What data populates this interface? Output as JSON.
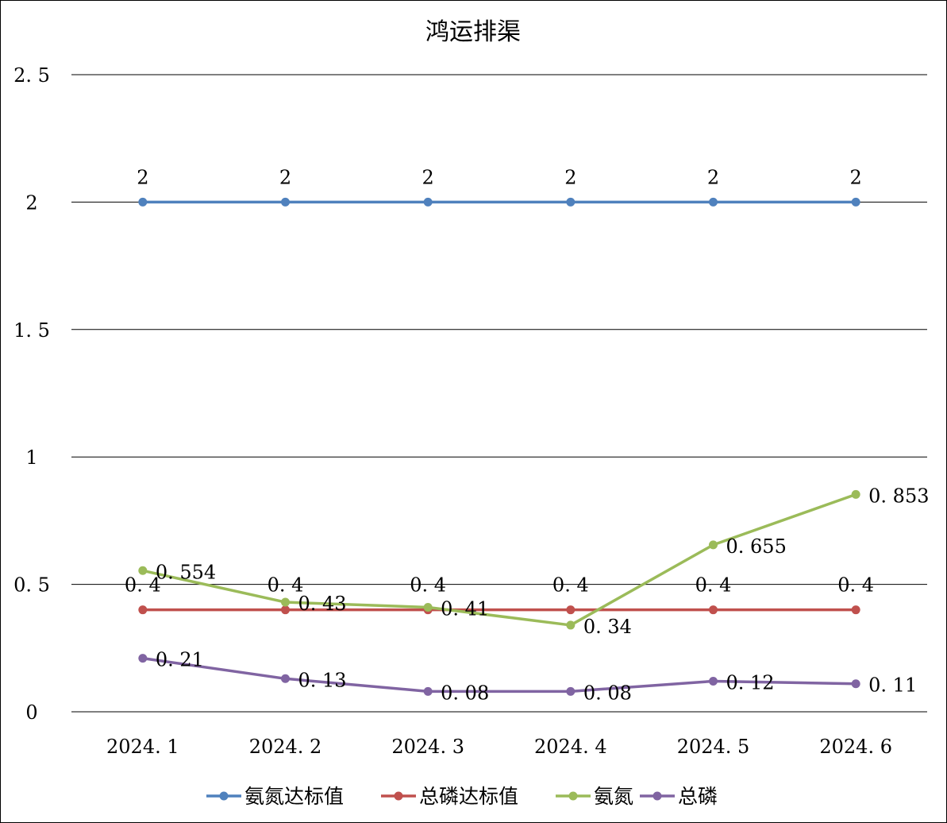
{
  "chart_data": {
    "type": "line",
    "title": "鸿运排渠",
    "xlabel": "",
    "ylabel": "",
    "categories": [
      "2024.1",
      "2024.2",
      "2024.3",
      "2024.4",
      "2024.5",
      "2024.6"
    ],
    "ylim": [
      0,
      2.5
    ],
    "yticks": [
      0,
      0.5,
      1,
      1.5,
      2,
      2.5
    ],
    "ytick_labels": [
      "0",
      "0.5",
      "1",
      "1.5",
      "2",
      "2.5"
    ],
    "grid": true,
    "legend_position": "bottom",
    "series": [
      {
        "name": "氨氮达标值",
        "color": "#4f81bd",
        "values": [
          2,
          2,
          2,
          2,
          2,
          2
        ],
        "labels": [
          "2",
          "2",
          "2",
          "2",
          "2",
          "2"
        ],
        "label_pos": "above"
      },
      {
        "name": "总磷达标值",
        "color": "#c0504d",
        "values": [
          0.4,
          0.4,
          0.4,
          0.4,
          0.4,
          0.4
        ],
        "labels": [
          "0.4",
          "0.4",
          "0.4",
          "0.4",
          "0.4",
          "0.4"
        ],
        "label_pos": "above"
      },
      {
        "name": "氨氮",
        "color": "#9bbb59",
        "values": [
          0.554,
          0.43,
          0.41,
          0.34,
          0.655,
          0.853
        ],
        "labels": [
          "0.554",
          "0.43",
          "0.41",
          "0.34",
          "0.655",
          "0.853"
        ],
        "label_pos": "right"
      },
      {
        "name": "总磷",
        "color": "#8064a2",
        "values": [
          0.21,
          0.13,
          0.08,
          0.08,
          0.12,
          0.11
        ],
        "labels": [
          "0.21",
          "0.13",
          "0.08",
          "0.08",
          "0.12",
          "0.11"
        ],
        "label_pos": "right"
      }
    ]
  }
}
